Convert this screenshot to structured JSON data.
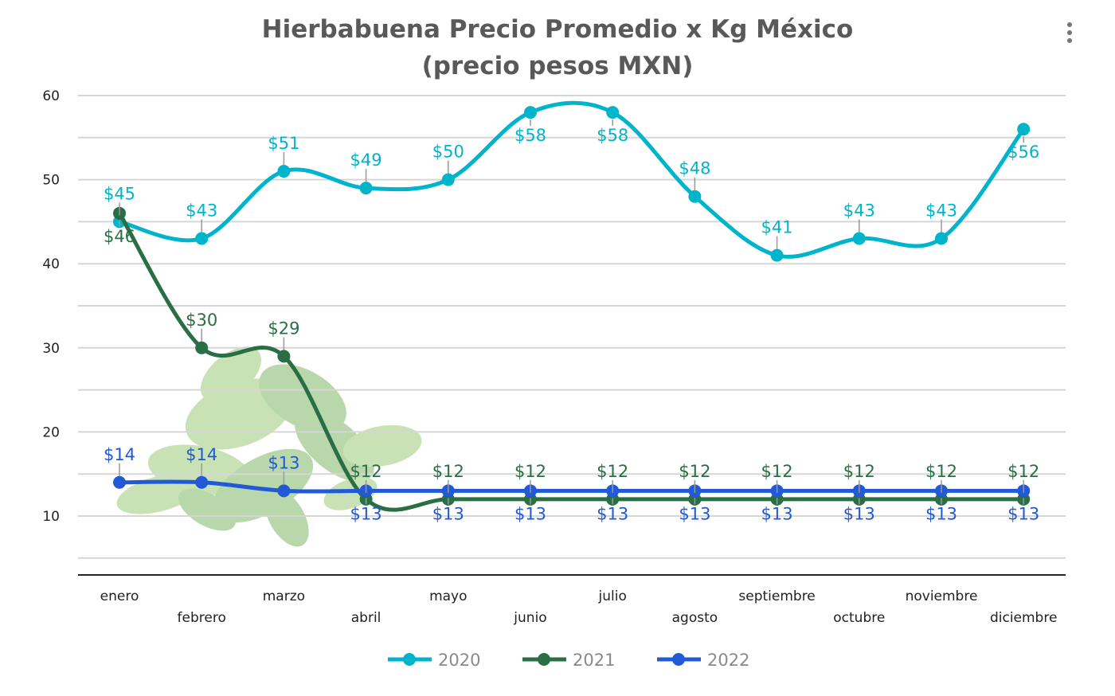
{
  "chart_data": {
    "type": "line",
    "title": "Hierbabuena Precio Promedio x Kg México",
    "subtitle": "(precio pesos MXN)",
    "categories": [
      "enero",
      "febrero",
      "marzo",
      "abril",
      "mayo",
      "junio",
      "julio",
      "agosto",
      "septiembre",
      "octubre",
      "noviembre",
      "diciembre"
    ],
    "yticks": [
      10,
      20,
      30,
      40,
      50,
      60
    ],
    "ylim": [
      3,
      60
    ],
    "grid": true,
    "smooth": true,
    "legend_position": "bottom",
    "label_prefix": "$",
    "series": [
      {
        "name": "2020",
        "color": "#00b4cc",
        "values": [
          45,
          43,
          51,
          49,
          50,
          58,
          58,
          48,
          41,
          43,
          43,
          56
        ]
      },
      {
        "name": "2021",
        "color": "#2a6e45",
        "values": [
          46,
          30,
          29,
          12,
          12,
          12,
          12,
          12,
          12,
          12,
          12,
          12
        ]
      },
      {
        "name": "2022",
        "color": "#2159d6",
        "values": [
          14,
          14,
          13,
          13,
          13,
          13,
          13,
          13,
          13,
          13,
          13,
          13
        ]
      }
    ]
  },
  "menu_icon": "more-vertical-icon",
  "background_image": "mint-leaves"
}
